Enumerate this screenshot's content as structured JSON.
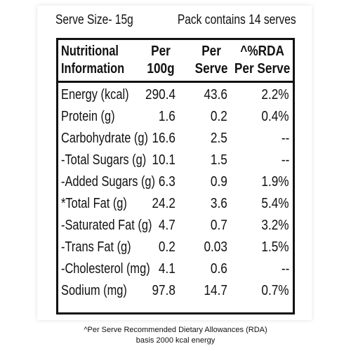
{
  "label": {
    "serve_size": "Serve Size- 15g",
    "pack_contains": "Pack contains 14 serves",
    "headers": {
      "nutrient_line1": "Nutritional",
      "nutrient_line2": "Information",
      "per100_line1": "Per",
      "per100_line2": "100g",
      "perserve_line1": "Per",
      "perserve_line2": "Serve",
      "rda_line1": "^%RDA",
      "rda_line2": "Per Serve"
    },
    "rows": [
      {
        "name": "Energy (kcal)",
        "per100g": "290.4",
        "per_serve": "43.6",
        "rda": "2.2%"
      },
      {
        "name": "Protein (g)",
        "per100g": "1.6",
        "per_serve": "0.2",
        "rda": "0.4%"
      },
      {
        "name": "Carbohydrate (g)",
        "per100g": "16.6",
        "per_serve": "2.5",
        "rda": "--"
      },
      {
        "name": "-Total Sugars (g)",
        "per100g": "10.1",
        "per_serve": "1.5",
        "rda": "--"
      },
      {
        "name": "-Added Sugars (g)",
        "per100g": "6.3",
        "per_serve": "0.9",
        "rda": "1.9%"
      },
      {
        "name": "*Total Fat (g)",
        "per100g": "24.2",
        "per_serve": "3.6",
        "rda": "5.4%"
      },
      {
        "name": "-Saturated Fat (g)",
        "per100g": "4.7",
        "per_serve": "0.7",
        "rda": "3.2%"
      },
      {
        "name": "-Trans Fat (g)",
        "per100g": "0.2",
        "per_serve": "0.03",
        "rda": "1.5%"
      },
      {
        "name": "-Cholesterol (mg)",
        "per100g": "4.1",
        "per_serve": "0.6",
        "rda": "--"
      },
      {
        "name": "Sodium (mg)",
        "per100g": "97.8",
        "per_serve": "14.7",
        "rda": "0.7%"
      }
    ]
  },
  "footnote": {
    "line1": "^Per Serve Recommended Dietary Allowances (RDA)",
    "line2": "basis 2000 kcal energy"
  }
}
